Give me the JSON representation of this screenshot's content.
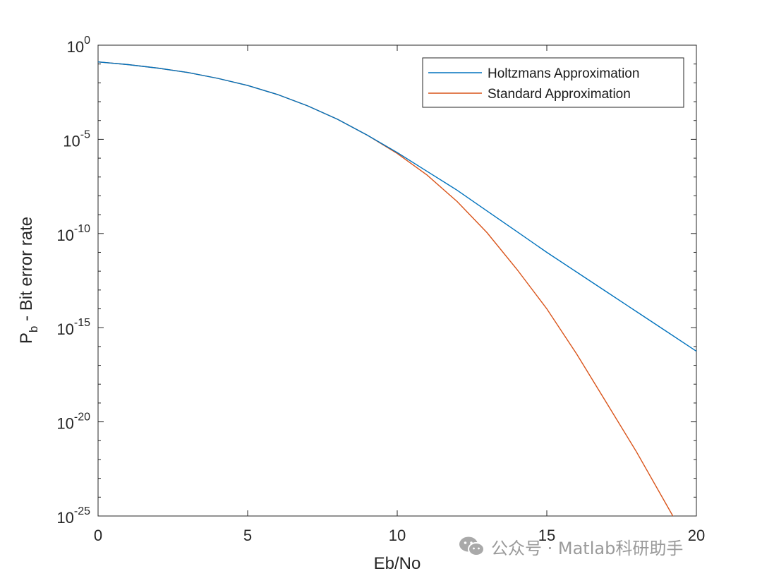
{
  "chart_data": {
    "type": "line",
    "xlabel": "Eb/No",
    "ylabel": {
      "main": "P",
      "sub": "b",
      "rest": " - Bit error rate"
    },
    "xlim": [
      0,
      20
    ],
    "ylim_exponents": [
      -25,
      0
    ],
    "yscale": "log",
    "xticks": [
      0,
      5,
      10,
      15,
      20
    ],
    "yticks": [
      {
        "base": "10",
        "exp": "0",
        "value": 0
      },
      {
        "base": "10",
        "exp": "-5",
        "value": -5
      },
      {
        "base": "10",
        "exp": "-10",
        "value": -10
      },
      {
        "base": "10",
        "exp": "-15",
        "value": -15
      },
      {
        "base": "10",
        "exp": "-20",
        "value": -20
      },
      {
        "base": "10",
        "exp": "-25",
        "value": -25
      }
    ],
    "legend_position": "top-right",
    "x": [
      0,
      1,
      2,
      3,
      4,
      5,
      6,
      7,
      8,
      9,
      10,
      11,
      12,
      13,
      14,
      15,
      16,
      17,
      18,
      19,
      20
    ],
    "series": [
      {
        "name": "Holtzmans Approximation",
        "color": "#0072BD",
        "log10_values": [
          -0.89,
          -1.03,
          -1.22,
          -1.45,
          -1.76,
          -2.14,
          -2.62,
          -3.22,
          -3.93,
          -4.78,
          -5.7,
          -6.7,
          -7.7,
          -8.8,
          -9.9,
          -11.0,
          -12.05,
          -13.1,
          -14.15,
          -15.2,
          -16.25
        ]
      },
      {
        "name": "Standard Approximation",
        "color": "#D95319",
        "log10_values": [
          -0.89,
          -1.03,
          -1.22,
          -1.45,
          -1.76,
          -2.14,
          -2.62,
          -3.22,
          -3.93,
          -4.78,
          -5.75,
          -6.9,
          -8.3,
          -9.95,
          -11.9,
          -14.0,
          -16.4,
          -19.0,
          -21.6,
          -24.4,
          -27.2
        ]
      }
    ]
  },
  "watermark": {
    "icon": "wechat-icon",
    "text": "公众号 · Matlab科研助手"
  }
}
